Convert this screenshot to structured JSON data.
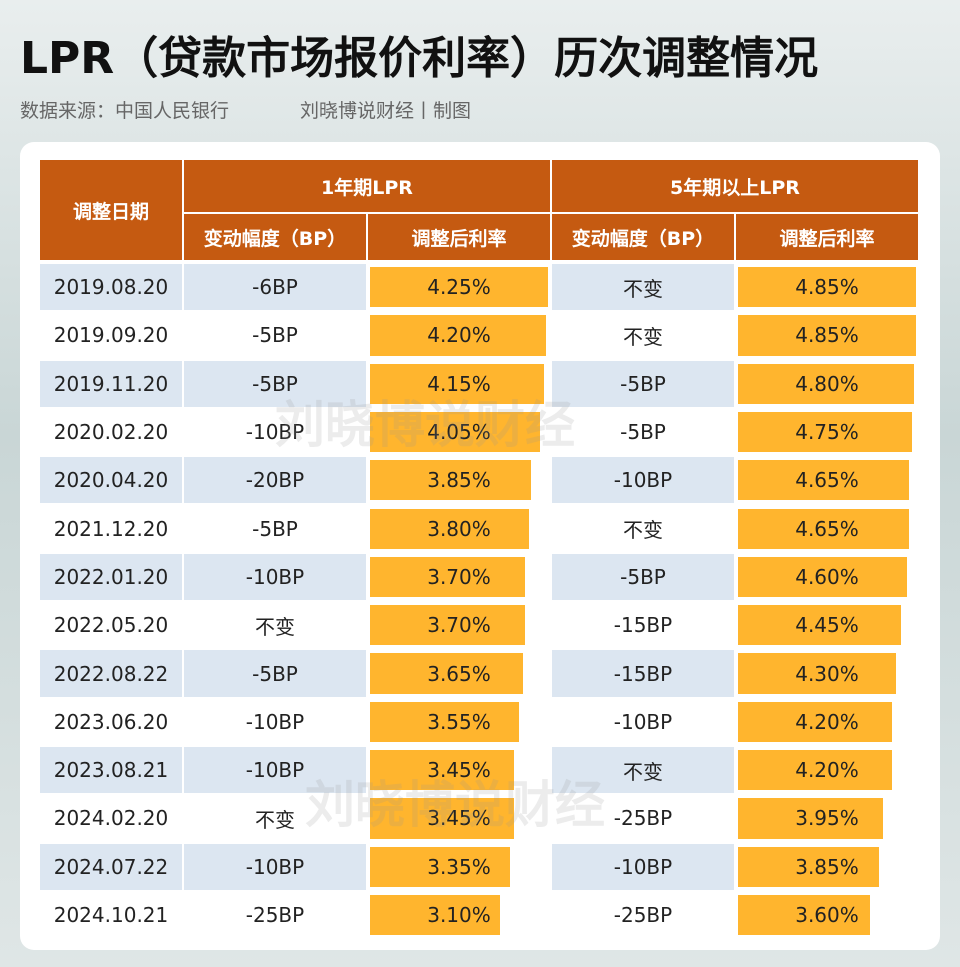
{
  "header": {
    "title": "LPR（贷款市场报价利率）历次调整情况",
    "source": "数据来源：中国人民银行",
    "author": "刘晓博说财经丨制图"
  },
  "watermark": "刘晓博说财经",
  "table": {
    "date_header": "调整日期",
    "groups": [
      "1年期LPR",
      "5年期以上LPR"
    ],
    "subheaders": [
      "变动幅度（BP）",
      "调整后利率",
      "变动幅度（BP）",
      "调整后利率"
    ],
    "rows": [
      [
        "2019.08.20",
        "-6BP",
        "4.25%",
        "不变",
        "4.85%"
      ],
      [
        "2019.09.20",
        "-5BP",
        "4.20%",
        "不变",
        "4.85%"
      ],
      [
        "2019.11.20",
        "-5BP",
        "4.15%",
        "-5BP",
        "4.80%"
      ],
      [
        "2020.02.20",
        "-10BP",
        "4.05%",
        "-5BP",
        "4.75%"
      ],
      [
        "2020.04.20",
        "-20BP",
        "3.85%",
        "-10BP",
        "4.65%"
      ],
      [
        "2021.12.20",
        "-5BP",
        "3.80%",
        "不变",
        "4.65%"
      ],
      [
        "2022.01.20",
        "-10BP",
        "3.70%",
        "-5BP",
        "4.60%"
      ],
      [
        "2022.05.20",
        "不变",
        "3.70%",
        "-15BP",
        "4.45%"
      ],
      [
        "2022.08.22",
        "-5BP",
        "3.65%",
        "-15BP",
        "4.30%"
      ],
      [
        "2023.06.20",
        "-10BP",
        "3.55%",
        "-10BP",
        "4.20%"
      ],
      [
        "2023.08.21",
        "-10BP",
        "3.45%",
        "不变",
        "4.20%"
      ],
      [
        "2024.02.20",
        "不变",
        "3.45%",
        "-25BP",
        "3.95%"
      ],
      [
        "2024.07.22",
        "-10BP",
        "3.35%",
        "-10BP",
        "3.85%"
      ],
      [
        "2024.10.21",
        "-25BP",
        "3.10%",
        "-25BP",
        "3.60%"
      ]
    ]
  }
}
